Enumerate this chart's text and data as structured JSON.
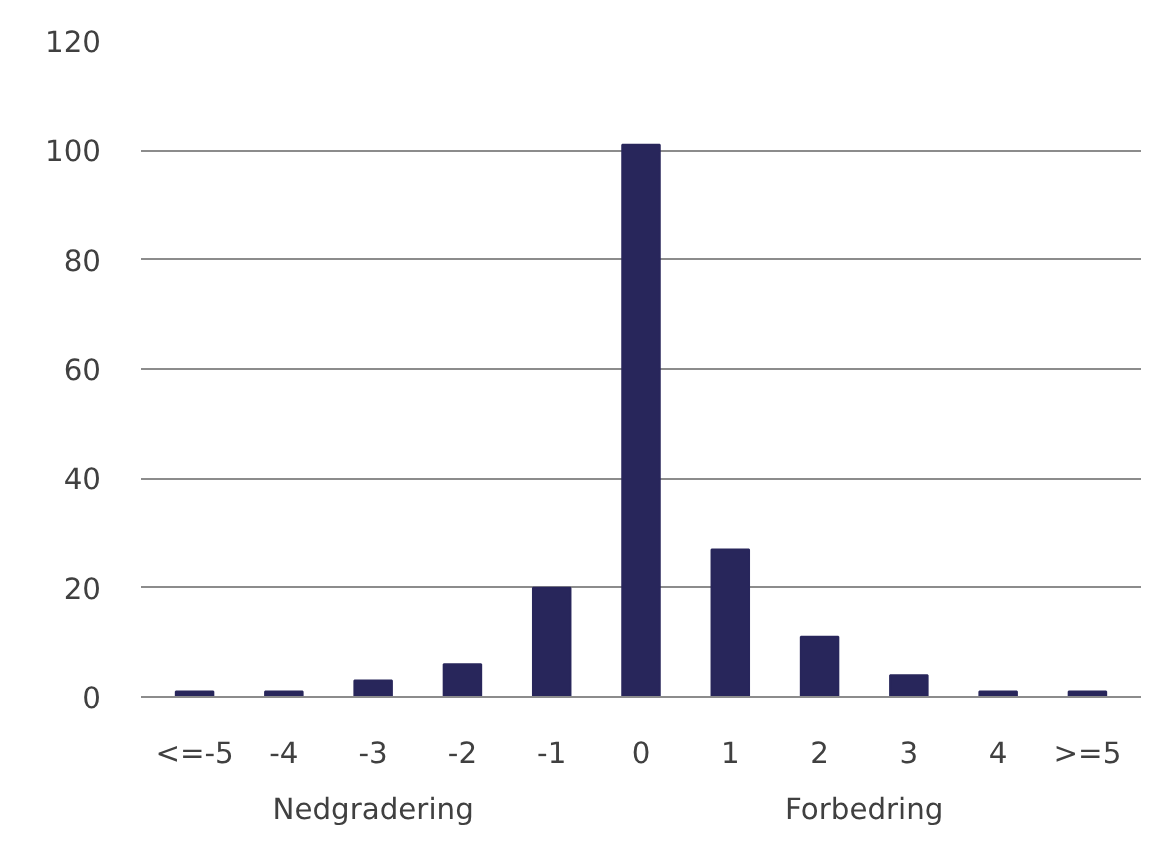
{
  "chart_data": {
    "type": "bar",
    "categories": [
      "<=-5",
      "-4",
      "-3",
      "-2",
      "-1",
      "0",
      "1",
      "2",
      "3",
      "4",
      ">=5"
    ],
    "values": [
      1,
      1,
      3,
      6,
      20,
      101,
      27,
      11,
      4,
      1,
      1
    ],
    "color": "#28265b",
    "ylim": [
      0,
      120
    ],
    "yticks": [
      0,
      20,
      40,
      60,
      80,
      100,
      120
    ],
    "grid": "y",
    "annotations": [
      "Nedgradering",
      "Forbedring"
    ]
  }
}
